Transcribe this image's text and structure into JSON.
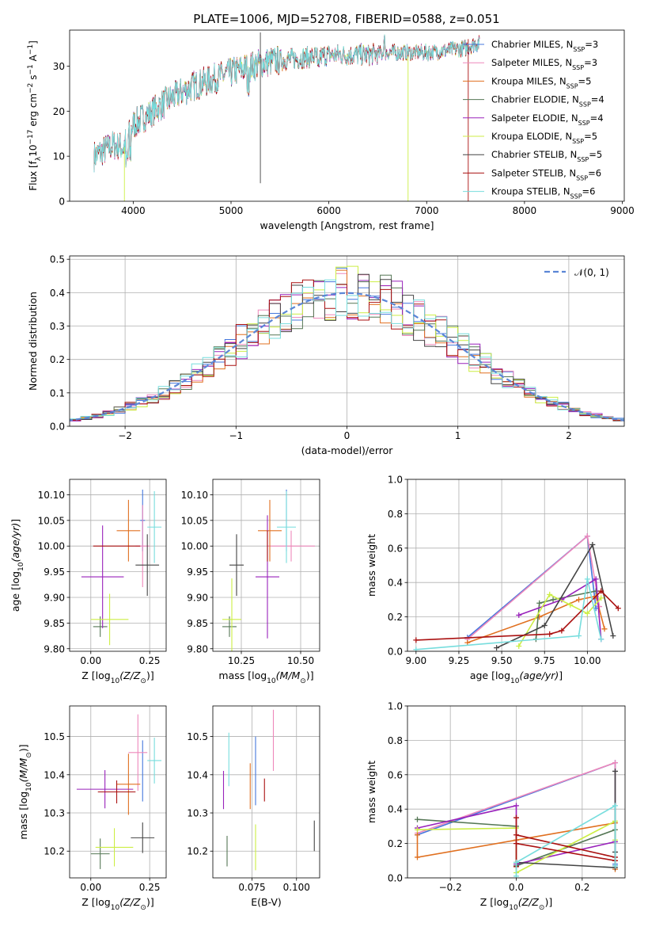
{
  "figure_title": "PLATE=1006, MJD=52708, FIBERID=0588, z=0.051",
  "series_names": [
    "Chabrier MILES, N_SSP=3",
    "Salpeter MILES, N_SSP=3",
    "Kroupa MILES, N_SSP=5",
    "Chabrier ELODIE, N_SSP=4",
    "Salpeter ELODIE, N_SSP=4",
    "Kroupa ELODIE, N_SSP=5",
    "Chabrier STELIB, N_SSP=5",
    "Salpeter STELIB, N_SSP=6",
    "Kroupa STELIB, N_SSP=6"
  ],
  "series_colors": [
    "#4477dd",
    "#ee88bb",
    "#e07020",
    "#557755",
    "#9922bb",
    "#ccee44",
    "#444444",
    "#aa1111",
    "#77dddd"
  ],
  "chart_data": [
    {
      "id": "spectrum",
      "type": "line",
      "xlabel": "wavelength [Angstrom, rest frame]",
      "ylabel": "Flux [f_λ 10^-17 erg cm^-2 s^-1 A^-1]",
      "xlim": [
        3350,
        9020
      ],
      "ylim": [
        0,
        38
      ],
      "xticks": [
        4000,
        5000,
        6000,
        7000,
        8000,
        9000
      ],
      "yticks": [
        0,
        10,
        20,
        30
      ],
      "continuum": {
        "x": [
          3600,
          3800,
          3900,
          4000,
          4200,
          4400,
          4600,
          4800,
          5000,
          5200,
          5400,
          5600,
          5800,
          6000,
          6200,
          6400,
          6600,
          6800,
          7000,
          7200,
          7400,
          7500
        ],
        "y": [
          10,
          12.5,
          12,
          17,
          20,
          23,
          25.5,
          27,
          28.5,
          30,
          31,
          31.5,
          32,
          32.5,
          32.5,
          32.5,
          33,
          33,
          33,
          33.5,
          34,
          35
        ]
      },
      "legend_position": "upper-right",
      "grid": false
    },
    {
      "id": "residual-histogram",
      "type": "histogram",
      "xlabel": "(data-model)/error",
      "ylabel": "Normed distribution",
      "xlim": [
        -2.5,
        2.5
      ],
      "ylim": [
        0,
        0.51
      ],
      "xticks": [
        -2,
        -1,
        0,
        1,
        2
      ],
      "yticks": [
        0.0,
        0.1,
        0.2,
        0.3,
        0.4,
        0.5
      ],
      "bin_width": 0.1,
      "reference_curve": "normal(0,1)",
      "reference_label": "𝒩(0, 1)",
      "legend_position": "upper-right",
      "grid": true
    },
    {
      "id": "age-vs-Z",
      "type": "errorbar",
      "xlabel": "Z [log10(Z/Z⊙)]",
      "ylabel": "age  [log10(age/yr)]",
      "xlim": [
        -0.09,
        0.32
      ],
      "ylim": [
        9.795,
        10.13
      ],
      "xticks": [
        0.0,
        0.25
      ],
      "yticks": [
        9.8,
        9.85,
        9.9,
        9.95,
        10.0,
        10.05,
        10.1
      ],
      "points": [
        {
          "x": 0.22,
          "y": 10.05,
          "xerr": 0.01,
          "yerr": 0.06
        },
        {
          "x": 0.22,
          "y": 10.0,
          "xerr": 0.03,
          "yerr": 0.08
        },
        {
          "x": 0.16,
          "y": 10.03,
          "xerr": 0.05,
          "yerr": 0.06
        },
        {
          "x": 0.04,
          "y": 9.843,
          "xerr": 0.03,
          "yerr": 0.02
        },
        {
          "x": 0.05,
          "y": 9.94,
          "xerr": 0.09,
          "yerr": 0.1
        },
        {
          "x": 0.08,
          "y": 9.857,
          "xerr": 0.08,
          "yerr": 0.05
        },
        {
          "x": 0.24,
          "y": 9.963,
          "xerr": 0.05,
          "yerr": 0.06
        },
        {
          "x": 0.11,
          "y": 10.0,
          "xerr": 0.1,
          "yerr": 0.0
        },
        {
          "x": 0.27,
          "y": 10.037,
          "xerr": 0.03,
          "yerr": 0.07
        }
      ],
      "grid": true
    },
    {
      "id": "age-vs-mass",
      "type": "errorbar",
      "xlabel": "mass [log10(M/M⊙)]",
      "ylabel": "",
      "xlim": [
        10.13,
        10.58
      ],
      "ylim": [
        9.795,
        10.13
      ],
      "xticks": [
        10.25,
        10.5
      ],
      "yticks": [
        9.8,
        9.85,
        9.9,
        9.95,
        10.0,
        10.05,
        10.1
      ],
      "points": [
        {
          "x": 10.44,
          "y": 10.05,
          "xerr": 0.0,
          "yerr": 0.06
        },
        {
          "x": 10.46,
          "y": 10.0,
          "xerr": 0.1,
          "yerr": 0.03
        },
        {
          "x": 10.37,
          "y": 10.03,
          "xerr": 0.05,
          "yerr": 0.06
        },
        {
          "x": 10.2,
          "y": 9.843,
          "xerr": 0.03,
          "yerr": 0.02
        },
        {
          "x": 10.36,
          "y": 9.94,
          "xerr": 0.05,
          "yerr": 0.12
        },
        {
          "x": 10.21,
          "y": 9.857,
          "xerr": 0.04,
          "yerr": 0.08
        },
        {
          "x": 10.23,
          "y": 9.963,
          "xerr": 0.03,
          "yerr": 0.06
        },
        {
          "x": 10.36,
          "y": 10.0,
          "xerr": 0.0,
          "yerr": 0.03
        },
        {
          "x": 10.44,
          "y": 10.037,
          "xerr": 0.04,
          "yerr": 0.07
        }
      ],
      "grid": true
    },
    {
      "id": "weight-vs-age",
      "type": "line",
      "xlabel": "age  [log10(age/yr)]",
      "ylabel": "mass weight",
      "xlim": [
        8.95,
        10.22
      ],
      "ylim": [
        0,
        1.0
      ],
      "xticks": [
        9.0,
        9.25,
        9.5,
        9.75,
        10.0
      ],
      "yticks": [
        0.0,
        0.2,
        0.4,
        0.6,
        0.8,
        1.0
      ],
      "series": [
        {
          "x": [
            9.3,
            10.0,
            10.05
          ],
          "y": [
            0.08,
            0.67,
            0.25
          ]
        },
        {
          "x": [
            9.3,
            10.0,
            10.07
          ],
          "y": [
            0.07,
            0.67,
            0.26
          ]
        },
        {
          "x": [
            9.3,
            9.72,
            9.95,
            10.05,
            10.1
          ],
          "y": [
            0.05,
            0.2,
            0.3,
            0.32,
            0.13
          ]
        },
        {
          "x": [
            9.7,
            9.72,
            9.8,
            10.05
          ],
          "y": [
            0.07,
            0.28,
            0.3,
            0.35
          ]
        },
        {
          "x": [
            9.6,
            9.85,
            10.05,
            10.08
          ],
          "y": [
            0.21,
            0.3,
            0.42,
            0.07
          ]
        },
        {
          "x": [
            9.6,
            9.78,
            9.9,
            10.0,
            10.08
          ],
          "y": [
            0.03,
            0.33,
            0.27,
            0.22,
            0.31
          ]
        },
        {
          "x": [
            9.47,
            9.75,
            10.03,
            10.15
          ],
          "y": [
            0.02,
            0.15,
            0.62,
            0.09
          ]
        },
        {
          "x": [
            9.0,
            9.78,
            9.85,
            10.08,
            10.18
          ],
          "y": [
            0.065,
            0.1,
            0.12,
            0.35,
            0.25
          ]
        },
        {
          "x": [
            9.0,
            9.95,
            10.0,
            10.08
          ],
          "y": [
            0.01,
            0.09,
            0.42,
            0.07
          ]
        }
      ],
      "grid": true
    },
    {
      "id": "mass-vs-Z",
      "type": "errorbar",
      "xlabel": "Z [log10(Z/Z⊙)]",
      "ylabel": "mass [log10(M/M⊙)]",
      "xlim": [
        -0.09,
        0.32
      ],
      "ylim": [
        10.13,
        10.58
      ],
      "xticks": [
        0.0,
        0.25
      ],
      "yticks": [
        10.2,
        10.3,
        10.4,
        10.5
      ],
      "points": [
        {
          "x": 0.22,
          "y": 10.41,
          "xerr": 0.0,
          "yerr": 0.08
        },
        {
          "x": 0.2,
          "y": 10.458,
          "xerr": 0.04,
          "yerr": 0.1
        },
        {
          "x": 0.16,
          "y": 10.375,
          "xerr": 0.05,
          "yerr": 0.08
        },
        {
          "x": 0.04,
          "y": 10.193,
          "xerr": 0.04,
          "yerr": 0.04
        },
        {
          "x": 0.06,
          "y": 10.362,
          "xerr": 0.12,
          "yerr": 0.05
        },
        {
          "x": 0.1,
          "y": 10.21,
          "xerr": 0.08,
          "yerr": 0.05
        },
        {
          "x": 0.22,
          "y": 10.235,
          "xerr": 0.05,
          "yerr": 0.04
        },
        {
          "x": 0.11,
          "y": 10.355,
          "xerr": 0.08,
          "yerr": 0.03
        },
        {
          "x": 0.27,
          "y": 10.437,
          "xerr": 0.03,
          "yerr": 0.06
        }
      ],
      "grid": true
    },
    {
      "id": "mass-vs-EBV",
      "type": "errorbar",
      "xlabel": "E(B-V)",
      "ylabel": "",
      "xlim": [
        0.053,
        0.113
      ],
      "ylim": [
        10.13,
        10.58
      ],
      "xticks": [
        0.075,
        0.1
      ],
      "yticks": [
        10.2,
        10.3,
        10.4,
        10.5
      ],
      "points": [
        {
          "x": 0.077,
          "y": 10.41,
          "xerr": 0.0,
          "yerr": 0.09
        },
        {
          "x": 0.087,
          "y": 10.49,
          "xerr": 0.0,
          "yerr": 0.08
        },
        {
          "x": 0.074,
          "y": 10.37,
          "xerr": 0.0,
          "yerr": 0.06
        },
        {
          "x": 0.061,
          "y": 10.2,
          "xerr": 0.0,
          "yerr": 0.04
        },
        {
          "x": 0.059,
          "y": 10.36,
          "xerr": 0.0,
          "yerr": 0.05
        },
        {
          "x": 0.077,
          "y": 10.21,
          "xerr": 0.0,
          "yerr": 0.06
        },
        {
          "x": 0.11,
          "y": 10.24,
          "xerr": 0.0,
          "yerr": 0.04
        },
        {
          "x": 0.082,
          "y": 10.36,
          "xerr": 0.0,
          "yerr": 0.03
        },
        {
          "x": 0.062,
          "y": 10.44,
          "xerr": 0.0,
          "yerr": 0.07
        }
      ],
      "grid": true
    },
    {
      "id": "weight-vs-Z",
      "type": "line",
      "xlabel": "Z [log10(Z/Z⊙)]",
      "ylabel": "mass weight",
      "xlim": [
        -0.33,
        0.33
      ],
      "ylim": [
        0,
        1.0
      ],
      "xticks": [
        -0.2,
        0.0,
        0.2
      ],
      "yticks": [
        0.0,
        0.2,
        0.4,
        0.6,
        0.8,
        1.0
      ],
      "series": [
        {
          "x": [
            -0.3,
            0.3,
            0.3
          ],
          "y": [
            0.25,
            0.67,
            0.08
          ]
        },
        {
          "x": [
            -0.3,
            0.3,
            0.3
          ],
          "y": [
            0.26,
            0.67,
            0.07
          ]
        },
        {
          "x": [
            -0.3,
            -0.3,
            0.0,
            0.3,
            0.3
          ],
          "y": [
            0.25,
            0.12,
            0.22,
            0.32,
            0.05
          ]
        },
        {
          "x": [
            -0.3,
            0.0,
            0.0,
            0.3
          ],
          "y": [
            0.34,
            0.3,
            0.07,
            0.28
          ]
        },
        {
          "x": [
            -0.3,
            0.0,
            0.0,
            0.3,
            0.3
          ],
          "y": [
            0.29,
            0.42,
            0.08,
            0.21,
            0.07
          ]
        },
        {
          "x": [
            -0.3,
            0.0,
            0.0,
            0.3,
            0.3
          ],
          "y": [
            0.28,
            0.29,
            0.03,
            0.33,
            0.22
          ]
        },
        {
          "x": [
            0.0,
            0.3,
            0.3,
            0.3
          ],
          "y": [
            0.09,
            0.06,
            0.62,
            0.15
          ]
        },
        {
          "x": [
            0.0,
            0.0,
            0.3,
            0.3,
            0.0,
            0.0
          ],
          "y": [
            0.065,
            0.25,
            0.12,
            0.1,
            0.2,
            0.35
          ]
        },
        {
          "x": [
            0.0,
            0.0,
            0.3,
            0.3
          ],
          "y": [
            0.01,
            0.09,
            0.42,
            0.07
          ]
        }
      ],
      "grid": true
    }
  ]
}
